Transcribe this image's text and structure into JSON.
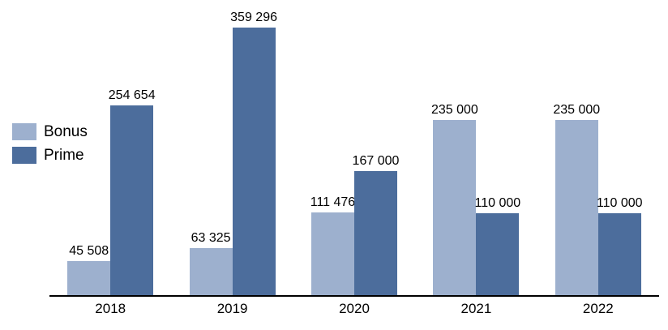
{
  "chart_data": {
    "type": "bar",
    "categories": [
      "2018",
      "2019",
      "2020",
      "2021",
      "2022"
    ],
    "series": [
      {
        "name": "Bonus",
        "color": "#9DB0CE",
        "values": [
          45508,
          63325,
          111476,
          235000,
          235000
        ],
        "labels": [
          "45 508",
          "63 325",
          "111 476",
          "235 000",
          "235 000"
        ]
      },
      {
        "name": "Prime",
        "color": "#4C6D9C",
        "values": [
          254654,
          359296,
          167000,
          110000,
          110000
        ],
        "labels": [
          "254 654",
          "359 296",
          "167 000",
          "110 000",
          "110 000"
        ]
      }
    ],
    "title": "",
    "xlabel": "",
    "ylabel": "",
    "ylim": [
      0,
      359296
    ],
    "grid": false,
    "legend_position": "left-middle",
    "axis_color": "#000000",
    "label_color": "#000000"
  }
}
